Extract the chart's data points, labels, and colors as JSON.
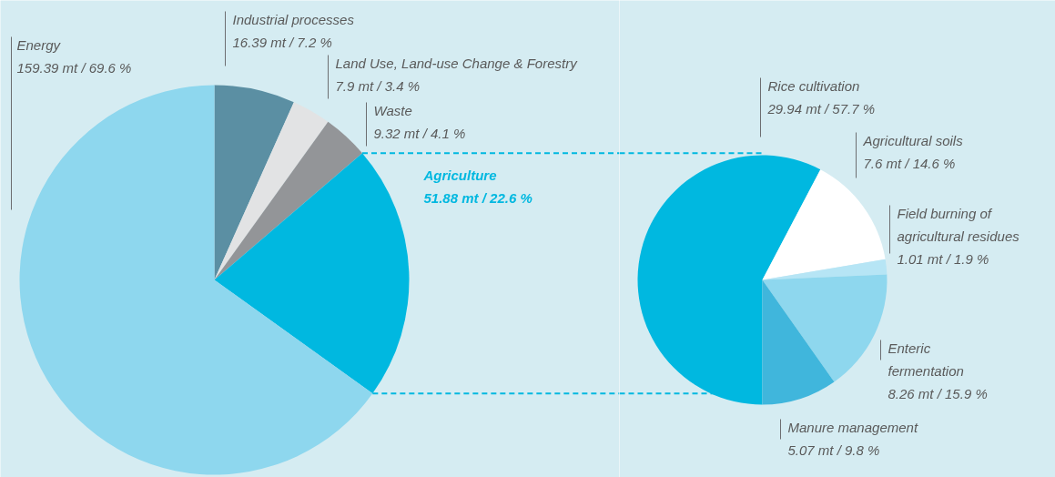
{
  "chart_data": [
    {
      "type": "pie",
      "categories": [
        "Industrial processes",
        "Land Use, Land-use Change & Forestry",
        "Waste",
        "Agriculture",
        "Energy"
      ],
      "values": [
        16.39,
        7.9,
        9.32,
        51.88,
        159.39
      ],
      "colors": [
        "#5b8fa3",
        "#e2e3e4",
        "#939598",
        "#00b8e0",
        "#8ed7ee"
      ],
      "value_labels": [
        "16.39 mt / 7.2 %",
        "7.9 mt / 3.4 %",
        "9.32 mt / 4.1 %",
        "51.88 mt / 22.6 %",
        "159.39 mt / 69.6 %"
      ]
    },
    {
      "type": "pie",
      "categories": [
        "Rice cultivation",
        "Agricultural soils",
        "Field burning of agricultural residues",
        "Enteric fermentation",
        "Manure management"
      ],
      "values": [
        29.94,
        7.6,
        1.01,
        8.26,
        5.07
      ],
      "colors": [
        "#00b8e0",
        "#ffffff",
        "#b6e5f5",
        "#8ed7ee",
        "#40b6dc"
      ],
      "value_labels": [
        "29.94 mt / 57.7 %",
        "7.6 mt / 14.6 %",
        "1.01 mt / 1.9 %",
        "8.26 mt / 15.9 %",
        "5.07 mt / 9.8 %"
      ]
    }
  ]
}
